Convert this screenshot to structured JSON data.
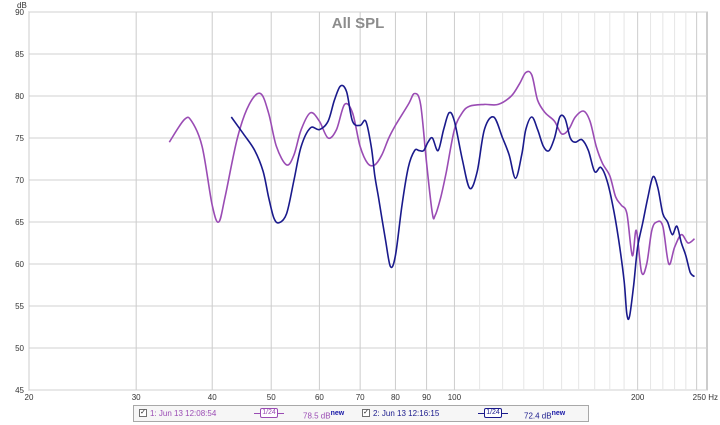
{
  "legend": {
    "items": [
      {
        "checked": "✓",
        "name": "1: Jun 13 12:08:54",
        "smoothing": "1/24",
        "level": "78.5 dB",
        "badge": "new",
        "color": "#9a4cb4"
      },
      {
        "checked": "✓",
        "name": "2: Jun 13 12:16:15",
        "smoothing": "1/24",
        "level": "72.4 dB",
        "badge": "new",
        "color": "#1a1a8c"
      }
    ]
  },
  "chart_data": {
    "type": "line",
    "title": "All SPL",
    "ylabel": "dB",
    "xlabel": "Hz",
    "x_scale": "log",
    "xlim": [
      20,
      260
    ],
    "ylim": [
      45,
      90
    ],
    "yticks": [
      45,
      50,
      55,
      60,
      65,
      70,
      75,
      80,
      85,
      90
    ],
    "xticks": [
      {
        "value": 20,
        "label": "20"
      },
      {
        "value": 30,
        "label": "30"
      },
      {
        "value": 40,
        "label": "40"
      },
      {
        "value": 50,
        "label": "50"
      },
      {
        "value": 60,
        "label": "60"
      },
      {
        "value": 70,
        "label": "70"
      },
      {
        "value": 80,
        "label": "80"
      },
      {
        "value": 90,
        "label": "90"
      },
      {
        "value": 100,
        "label": "100"
      },
      {
        "value": 200,
        "label": "200"
      },
      {
        "value": 250,
        "label": "250 Hz"
      }
    ],
    "minor_grid": [
      110,
      120,
      130,
      140,
      150,
      160,
      170,
      180,
      190,
      210,
      220,
      230,
      240
    ],
    "grid": true,
    "series": [
      {
        "name": "1: Jun 13 12:08:54",
        "color": "#9a4cb4",
        "points": [
          [
            34,
            74.5
          ],
          [
            36,
            77.2
          ],
          [
            37,
            77
          ],
          [
            38.5,
            74
          ],
          [
            40,
            67
          ],
          [
            41,
            65
          ],
          [
            42,
            68
          ],
          [
            44,
            75
          ],
          [
            46,
            79
          ],
          [
            48,
            80.3
          ],
          [
            49.5,
            78
          ],
          [
            51,
            74
          ],
          [
            53,
            71.8
          ],
          [
            54.5,
            73
          ],
          [
            56,
            76
          ],
          [
            58,
            78
          ],
          [
            60,
            77
          ],
          [
            62,
            75
          ],
          [
            64,
            76
          ],
          [
            66,
            79
          ],
          [
            68,
            78
          ],
          [
            70,
            74
          ],
          [
            72,
            72
          ],
          [
            74,
            71.8
          ],
          [
            76,
            73
          ],
          [
            78,
            75
          ],
          [
            80,
            76.5
          ],
          [
            84,
            79
          ],
          [
            86,
            80.3
          ],
          [
            88,
            79
          ],
          [
            90,
            72
          ],
          [
            92,
            66
          ],
          [
            93,
            65.8
          ],
          [
            95,
            68
          ],
          [
            97,
            71
          ],
          [
            100,
            76
          ],
          [
            103,
            78
          ],
          [
            106,
            78.8
          ],
          [
            112,
            79
          ],
          [
            118,
            79
          ],
          [
            124,
            80
          ],
          [
            128,
            81.5
          ],
          [
            131,
            82.8
          ],
          [
            134,
            82.5
          ],
          [
            137,
            79.5
          ],
          [
            141,
            78
          ],
          [
            146,
            77
          ],
          [
            150,
            75.5
          ],
          [
            154,
            76
          ],
          [
            158,
            77.5
          ],
          [
            163,
            78.2
          ],
          [
            167,
            77
          ],
          [
            171,
            74
          ],
          [
            175,
            72
          ],
          [
            180,
            70.5
          ],
          [
            184,
            68
          ],
          [
            188,
            67
          ],
          [
            192,
            66
          ],
          [
            196,
            61
          ],
          [
            199,
            64
          ],
          [
            203,
            59
          ],
          [
            207,
            60
          ],
          [
            211,
            64
          ],
          [
            215,
            65
          ],
          [
            220,
            64.5
          ],
          [
            225,
            60
          ],
          [
            230,
            62
          ],
          [
            236,
            63.5
          ],
          [
            242,
            62.5
          ],
          [
            248,
            63
          ]
        ]
      },
      {
        "name": "2: Jun 13 12:16:15",
        "color": "#1a1a8c",
        "points": [
          [
            43,
            77.5
          ],
          [
            45,
            75.5
          ],
          [
            47,
            73.5
          ],
          [
            48.5,
            71
          ],
          [
            49.5,
            68
          ],
          [
            50.5,
            65.5
          ],
          [
            51.5,
            64.9
          ],
          [
            53,
            66
          ],
          [
            54.5,
            70
          ],
          [
            56,
            74
          ],
          [
            58,
            76.2
          ],
          [
            60,
            76
          ],
          [
            62,
            77
          ],
          [
            63.5,
            79.5
          ],
          [
            65,
            81.2
          ],
          [
            66.5,
            80.5
          ],
          [
            68,
            77
          ],
          [
            70,
            76.5
          ],
          [
            71.5,
            77
          ],
          [
            73,
            74
          ],
          [
            74,
            70.5
          ],
          [
            75,
            68
          ],
          [
            77,
            63
          ],
          [
            78.5,
            59.7
          ],
          [
            80,
            61
          ],
          [
            82,
            67
          ],
          [
            84,
            71.5
          ],
          [
            86,
            73.5
          ],
          [
            87.5,
            73.5
          ],
          [
            89,
            73.5
          ],
          [
            90.5,
            74.5
          ],
          [
            92,
            75
          ],
          [
            94,
            73.5
          ],
          [
            96,
            76
          ],
          [
            98,
            78
          ],
          [
            100,
            77
          ],
          [
            103,
            72.5
          ],
          [
            106,
            69
          ],
          [
            109,
            71
          ],
          [
            112,
            76
          ],
          [
            116,
            77.5
          ],
          [
            120,
            75
          ],
          [
            123,
            73
          ],
          [
            126,
            70.2
          ],
          [
            129,
            73
          ],
          [
            131,
            76
          ],
          [
            134,
            77.5
          ],
          [
            137,
            76
          ],
          [
            140,
            74
          ],
          [
            143,
            73.5
          ],
          [
            146,
            75
          ],
          [
            149,
            77.5
          ],
          [
            152,
            77.3
          ],
          [
            155,
            75
          ],
          [
            158,
            74.5
          ],
          [
            162,
            74.8
          ],
          [
            166,
            73.5
          ],
          [
            170,
            71
          ],
          [
            174,
            71.5
          ],
          [
            178,
            70
          ],
          [
            182,
            67
          ],
          [
            186,
            63
          ],
          [
            190,
            58
          ],
          [
            192,
            54
          ],
          [
            194,
            53.8
          ],
          [
            197,
            57.5
          ],
          [
            200,
            62
          ],
          [
            204,
            65
          ],
          [
            208,
            68
          ],
          [
            212,
            70.4
          ],
          [
            216,
            69
          ],
          [
            220,
            66
          ],
          [
            224,
            65
          ],
          [
            228,
            63.5
          ],
          [
            232,
            64.5
          ],
          [
            236,
            62.5
          ],
          [
            240,
            61
          ],
          [
            244,
            59
          ],
          [
            248,
            58.5
          ]
        ]
      }
    ]
  }
}
